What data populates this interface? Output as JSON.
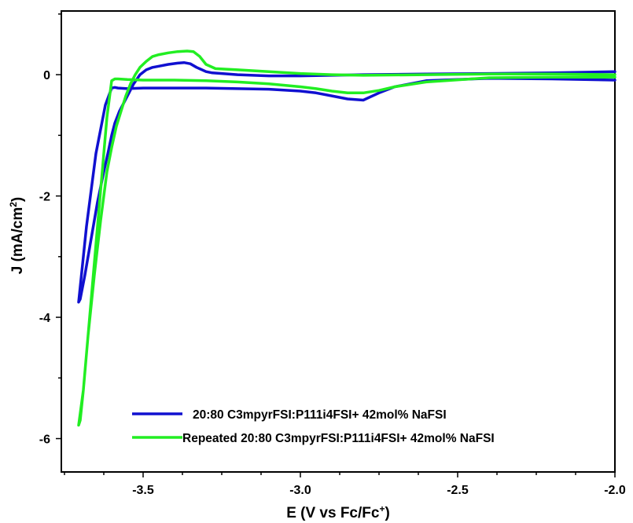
{
  "chart_data": {
    "type": "line",
    "xlabel_main": "E (V vs Fc/Fc",
    "xlabel_sup": "+",
    "xlabel_end": ")",
    "ylabel_main": "J (mA/cm",
    "ylabel_sup": "2",
    "ylabel_end": ")",
    "xlim": [
      -3.76,
      -2.0
    ],
    "ylim": [
      -6.55,
      1.05
    ],
    "x_ticks": [
      -3.5,
      -3.0,
      -2.5,
      -2.0
    ],
    "x_tick_labels": [
      "-3.5",
      "-3.0",
      "-2.5",
      "-2.0"
    ],
    "y_ticks": [
      0,
      -2,
      -4,
      -6
    ],
    "y_tick_labels": [
      "0",
      "-2",
      "-4",
      "-6"
    ],
    "legend_position": "bottom-left",
    "series": [
      {
        "name": "20:80 C3mpyrFSI:P111i4FSI+ 42mol% NaFSI",
        "color": "#1010d0",
        "x": [
          -2.0,
          -2.2,
          -2.4,
          -2.6,
          -2.7,
          -2.75,
          -2.8,
          -2.85,
          -2.9,
          -2.95,
          -3.0,
          -3.1,
          -3.2,
          -3.3,
          -3.4,
          -3.5,
          -3.55,
          -3.58,
          -3.59,
          -3.6,
          -3.62,
          -3.65,
          -3.68,
          -3.705,
          -3.7,
          -3.685,
          -3.665,
          -3.645,
          -3.625,
          -3.61,
          -3.6,
          -3.59,
          -3.575,
          -3.56,
          -3.545,
          -3.53,
          -3.51,
          -3.49,
          -3.47,
          -3.45,
          -3.42,
          -3.39,
          -3.37,
          -3.35,
          -3.33,
          -3.3,
          -3.28,
          -3.25,
          -3.2,
          -3.1,
          -3.0,
          -2.9,
          -2.8,
          -2.6,
          -2.4,
          -2.2,
          -2.0
        ],
        "y": [
          -0.09,
          -0.07,
          -0.06,
          -0.1,
          -0.2,
          -0.3,
          -0.42,
          -0.4,
          -0.35,
          -0.3,
          -0.27,
          -0.24,
          -0.23,
          -0.22,
          -0.22,
          -0.22,
          -0.23,
          -0.22,
          -0.21,
          -0.22,
          -0.5,
          -1.3,
          -2.5,
          -3.75,
          -3.7,
          -3.3,
          -2.7,
          -2.1,
          -1.6,
          -1.25,
          -1.0,
          -0.8,
          -0.6,
          -0.45,
          -0.3,
          -0.15,
          0.0,
          0.08,
          0.12,
          0.14,
          0.17,
          0.19,
          0.2,
          0.18,
          0.12,
          0.05,
          0.03,
          0.02,
          0.0,
          -0.02,
          -0.02,
          -0.01,
          0.0,
          0.01,
          0.02,
          0.03,
          0.05
        ]
      },
      {
        "name": "Repeated 20:80 C3mpyrFSI:P111i4FSI+ 42mol% NaFSI",
        "color": "#22ee22",
        "x": [
          -2.0,
          -2.2,
          -2.4,
          -2.6,
          -2.7,
          -2.75,
          -2.8,
          -2.85,
          -2.9,
          -2.95,
          -3.0,
          -3.1,
          -3.2,
          -3.3,
          -3.4,
          -3.5,
          -3.55,
          -3.58,
          -3.59,
          -3.6,
          -3.615,
          -3.63,
          -3.65,
          -3.67,
          -3.69,
          -3.705,
          -3.7,
          -3.69,
          -3.675,
          -3.655,
          -3.635,
          -3.615,
          -3.6,
          -3.585,
          -3.57,
          -3.555,
          -3.54,
          -3.525,
          -3.51,
          -3.49,
          -3.47,
          -3.45,
          -3.42,
          -3.39,
          -3.36,
          -3.34,
          -3.32,
          -3.3,
          -3.27,
          -3.2,
          -3.1,
          -3.0,
          -2.9,
          -2.8,
          -2.6,
          -2.4,
          -2.2,
          -2.0
        ],
        "y": [
          -0.04,
          -0.04,
          -0.05,
          -0.12,
          -0.2,
          -0.26,
          -0.3,
          -0.3,
          -0.27,
          -0.23,
          -0.2,
          -0.15,
          -0.12,
          -0.1,
          -0.09,
          -0.09,
          -0.08,
          -0.07,
          -0.07,
          -0.1,
          -0.7,
          -1.6,
          -2.8,
          -4.0,
          -5.2,
          -5.78,
          -5.7,
          -5.2,
          -4.3,
          -3.3,
          -2.4,
          -1.6,
          -1.2,
          -0.85,
          -0.6,
          -0.35,
          -0.15,
          0.0,
          0.12,
          0.22,
          0.3,
          0.33,
          0.36,
          0.38,
          0.39,
          0.38,
          0.3,
          0.17,
          0.1,
          0.08,
          0.05,
          0.02,
          0.0,
          -0.01,
          0.0,
          0.01,
          0.01,
          0.0
        ]
      }
    ]
  }
}
